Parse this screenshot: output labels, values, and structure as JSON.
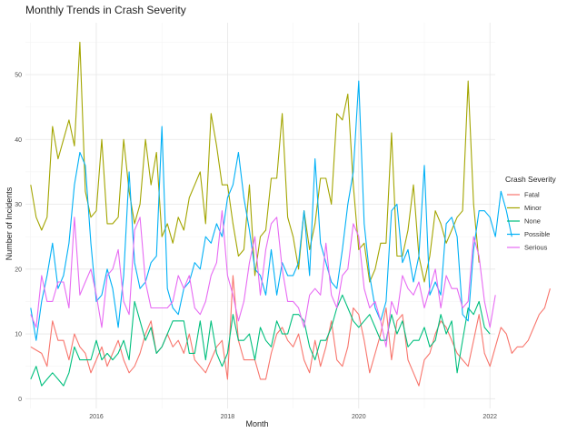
{
  "chart_data": {
    "type": "line",
    "title": "Monthly Trends in Crash Severity",
    "xlabel": "Month",
    "ylabel": "Number of Incidents",
    "x_start_year": 2015,
    "xlim": [
      2014.92,
      2022.08
    ],
    "ylim": [
      -1.5,
      58
    ],
    "x_ticks": [
      2016,
      2018,
      2020,
      2022
    ],
    "y_ticks": [
      0,
      10,
      20,
      30,
      40,
      50
    ],
    "grid": true,
    "legend": {
      "title": "Crash Severity",
      "position": "right"
    },
    "series": [
      {
        "name": "Fatal",
        "color": "#F8766D",
        "values": [
          8,
          7.5,
          7,
          5,
          12,
          9,
          9,
          6,
          10,
          8,
          7,
          4,
          6,
          8,
          5,
          7,
          9,
          6,
          4,
          5,
          7,
          10,
          12,
          7,
          8,
          10,
          8,
          9,
          7,
          10,
          6,
          5,
          4,
          6,
          8,
          9,
          3,
          19,
          9,
          6,
          6,
          6,
          3,
          3,
          7,
          10,
          11,
          9,
          8,
          10,
          6,
          4,
          9,
          5,
          8,
          12,
          6,
          5,
          8,
          14,
          13,
          9,
          4,
          7,
          10,
          14,
          6,
          12,
          13,
          6,
          4,
          2,
          6,
          7,
          10,
          12,
          11,
          9,
          7,
          6,
          5,
          9,
          13,
          7,
          5,
          8,
          11,
          10,
          7,
          8,
          8,
          9,
          11,
          13,
          14,
          17
        ]
      },
      {
        "name": "Minor",
        "color": "#A3A500",
        "values": [
          33,
          28,
          26,
          28,
          42,
          37,
          40,
          43,
          39,
          55,
          32,
          28,
          29,
          40,
          27,
          27,
          28,
          40,
          32,
          27,
          30,
          40,
          33,
          38,
          25,
          27,
          24,
          28,
          26,
          31,
          33,
          35,
          27,
          44,
          39,
          33,
          33,
          27,
          22,
          23,
          33,
          19,
          25,
          26,
          34,
          34,
          44,
          28,
          25,
          20,
          29,
          23,
          27,
          34,
          34,
          30,
          44,
          43,
          47,
          33,
          23,
          24,
          18,
          20,
          24,
          24,
          41,
          22,
          22,
          26,
          33,
          22,
          18,
          22,
          29,
          27,
          24,
          26,
          28,
          29,
          49,
          30,
          21
        ]
      },
      {
        "name": "None",
        "color": "#00BF7D",
        "values": [
          3,
          5,
          2,
          3,
          4,
          3,
          2,
          4,
          8,
          6,
          6,
          6,
          9,
          6,
          7,
          6,
          7,
          9,
          6,
          15,
          12,
          9,
          11,
          7,
          8,
          10,
          12,
          12,
          12,
          7,
          7,
          12,
          6,
          12,
          7,
          5,
          7,
          13,
          9,
          9,
          10,
          6,
          11,
          9,
          8,
          12,
          10,
          10,
          13,
          13,
          12,
          8,
          6,
          9,
          9,
          11,
          14,
          16,
          14,
          12,
          11,
          12,
          13,
          11,
          9,
          9,
          13,
          10,
          12,
          8,
          9,
          9,
          11,
          8,
          9,
          13,
          10,
          12,
          4,
          9,
          14,
          13,
          15,
          11,
          10
        ]
      },
      {
        "name": "Possible",
        "color": "#00B0F6",
        "values": [
          14,
          9,
          15,
          19,
          24,
          17,
          19,
          24,
          33,
          38,
          36,
          24,
          15,
          16,
          20,
          17,
          11,
          19,
          35,
          21,
          17,
          18,
          21,
          22,
          42,
          17,
          14,
          13,
          17,
          18,
          21,
          20,
          25,
          24,
          27,
          25,
          31,
          33,
          38,
          31,
          26,
          20,
          19,
          16,
          23,
          16,
          21,
          19,
          19,
          21,
          29,
          19,
          37,
          24,
          21,
          18,
          17,
          23,
          30,
          35,
          49,
          27,
          19,
          14,
          12,
          15,
          29,
          30,
          21,
          23,
          18,
          22,
          36,
          16,
          18,
          16,
          27,
          28,
          25,
          13,
          12,
          23,
          29,
          29,
          28,
          25,
          32,
          29,
          25
        ]
      },
      {
        "name": "Serious",
        "color": "#E76BF3",
        "values": [
          13,
          11,
          19,
          15,
          15,
          18,
          18,
          14,
          28,
          16,
          18,
          20,
          16,
          11,
          19,
          20,
          23,
          15,
          13,
          26,
          28,
          18,
          14,
          14,
          14,
          14,
          15,
          19,
          17,
          19,
          14,
          13,
          15,
          19,
          21,
          29,
          19,
          16,
          12,
          15,
          21,
          25,
          16,
          23,
          27,
          28,
          20,
          15,
          15,
          14,
          11,
          16,
          17,
          16,
          24,
          16,
          14,
          19,
          20,
          27,
          25,
          17,
          14,
          15,
          12,
          8,
          15,
          13,
          19,
          17,
          16,
          18,
          14,
          17,
          20,
          14,
          19,
          17,
          17,
          14,
          15,
          25,
          22,
          15,
          11,
          16
        ]
      }
    ]
  }
}
